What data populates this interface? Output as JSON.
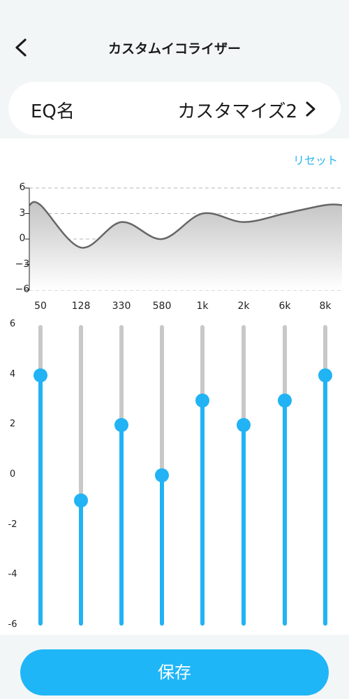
{
  "header": {
    "title": "カスタムイコライザー",
    "back_icon": "chevron-left-icon"
  },
  "eq_name": {
    "label": "EQ名",
    "value": "カスタマイズ2",
    "chevron_icon": "chevron-right-icon"
  },
  "reset_label": "リセット",
  "colors": {
    "accent": "#21b3f4",
    "track": "#c8c8c8",
    "curve": "#666666"
  },
  "chart_data": {
    "type": "area",
    "xlabel": "",
    "ylabel": "",
    "y_ticks": [
      "6",
      "3",
      "0",
      "−3",
      "−6"
    ],
    "ylim": [
      -6,
      6
    ],
    "categories": [
      "50",
      "128",
      "330",
      "580",
      "1k",
      "2k",
      "6k",
      "8k"
    ],
    "values": [
      4,
      -1,
      2,
      0,
      3,
      2,
      3,
      4
    ],
    "grid": true
  },
  "sliders": {
    "y_ticks": [
      "6",
      "4",
      "2",
      "0",
      "-2",
      "-4",
      "-6"
    ],
    "range": [
      -6,
      6
    ],
    "values": [
      4,
      -1,
      2,
      0,
      3,
      2,
      3,
      4
    ]
  },
  "save_label": "保存"
}
